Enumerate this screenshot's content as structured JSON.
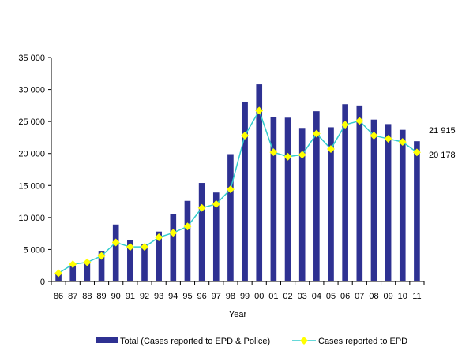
{
  "chart_data": {
    "type": "bar",
    "categories": [
      "86",
      "87",
      "88",
      "89",
      "90",
      "91",
      "92",
      "93",
      "94",
      "95",
      "96",
      "97",
      "98",
      "99",
      "00",
      "01",
      "02",
      "03",
      "04",
      "05",
      "06",
      "07",
      "08",
      "09",
      "10",
      "11"
    ],
    "series": [
      {
        "name": "Total (Cases reported to EPD & Police)",
        "type": "bar",
        "color": "#2E3192",
        "values": [
          1400,
          2500,
          3000,
          4800,
          8900,
          6500,
          5900,
          7800,
          10500,
          12600,
          15400,
          13900,
          19900,
          28100,
          30800,
          25700,
          25600,
          24000,
          26600,
          24100,
          27700,
          27500,
          25300,
          24600,
          23700,
          21915
        ]
      },
      {
        "name": "Cases reported to EPD",
        "type": "line",
        "color": "#33CCCC",
        "marker_color": "#FFFF00",
        "values": [
          1300,
          2700,
          3000,
          4000,
          6100,
          5400,
          5400,
          6900,
          7600,
          8600,
          11500,
          12100,
          14400,
          22800,
          26700,
          20200,
          19500,
          19800,
          23100,
          20700,
          24500,
          25100,
          22800,
          22300,
          21800,
          20178
        ]
      }
    ],
    "title": "",
    "xlabel": "Year",
    "ylabel": "",
    "ylim": [
      0,
      35000
    ],
    "yticks": [
      "0",
      "5 000",
      "10 000",
      "15 000",
      "20 000",
      "25 000",
      "30 000",
      "35 000"
    ],
    "end_labels": {
      "total": "21 915",
      "epd": "20 178"
    },
    "legend": {
      "position": "bottom",
      "items": [
        "Total (Cases reported to EPD & Police)",
        "Cases reported to EPD"
      ]
    },
    "grid": false
  }
}
